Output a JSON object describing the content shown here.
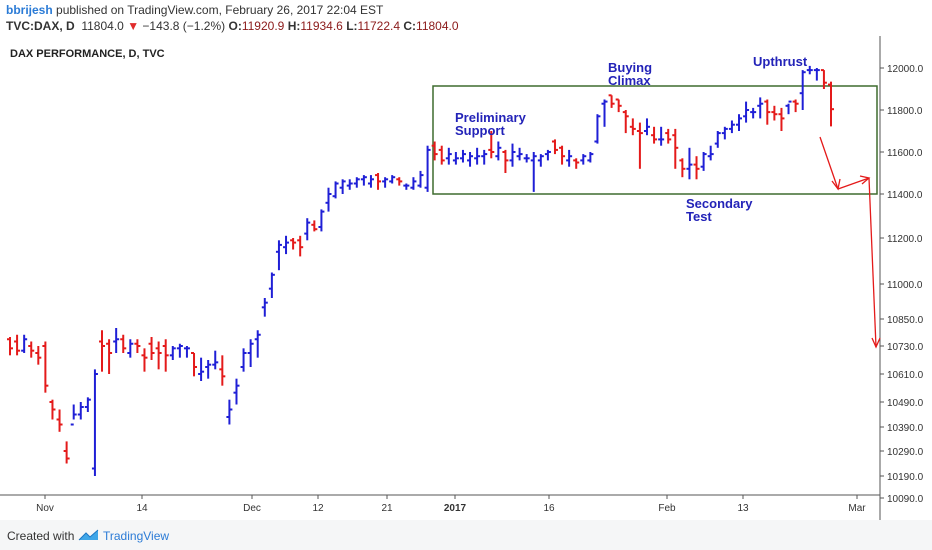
{
  "header": {
    "author": "bbrijesh",
    "published": "published on TradingView.com, February 26, 2017 22:04 EST",
    "symbol": "TVC:DAX, D",
    "last": "11804.0",
    "change": "−143.8 (−1.2%)",
    "open_label": "O:",
    "open": "11920.9",
    "high_label": "H:",
    "high": "11934.6",
    "low_label": "L:",
    "low": "11722.4",
    "close_label": "C:",
    "close": "11804.0"
  },
  "footer": {
    "created_with": "Created with",
    "brand": "TradingView"
  },
  "colors": {
    "up": "#1f1fd6",
    "down": "#e41a1a",
    "box": "#3e6b2f",
    "annotation": "#2323b8",
    "arrow": "#e41a1a"
  },
  "chart_data": {
    "type": "ohlc",
    "title": "DAX PERFORMANCE, D, TVC",
    "y_ticks": [
      12000.0,
      11800.0,
      11600.0,
      11400.0,
      11200.0,
      11000.0,
      10850.0,
      10730.0,
      10610.0,
      10490.0,
      10390.0,
      10290.0,
      10190.0,
      10090.0
    ],
    "y_tick_labels": [
      "12000.0",
      "11800.0",
      "11600.0",
      "11400.0",
      "11200.0",
      "11000.0",
      "10850.0",
      "10730.0",
      "10610.0",
      "10490.0",
      "10390.0",
      "10290.0",
      "10190.0",
      "10090.0"
    ],
    "x_tick_labels": [
      "Nov",
      "14",
      "Dec",
      "12",
      "21",
      "2017",
      "16",
      "Feb",
      "13",
      "Mar"
    ],
    "bars": [
      {
        "o": 10760,
        "h": 10770,
        "l": 10690,
        "c": 10720
      },
      {
        "o": 10750,
        "h": 10780,
        "l": 10690,
        "c": 10710
      },
      {
        "o": 10710,
        "h": 10780,
        "l": 10700,
        "c": 10760
      },
      {
        "o": 10730,
        "h": 10750,
        "l": 10680,
        "c": 10710
      },
      {
        "o": 10700,
        "h": 10730,
        "l": 10650,
        "c": 10680
      },
      {
        "o": 10730,
        "h": 10750,
        "l": 10530,
        "c": 10560
      },
      {
        "o": 10490,
        "h": 10500,
        "l": 10420,
        "c": 10460
      },
      {
        "o": 10420,
        "h": 10460,
        "l": 10370,
        "c": 10400
      },
      {
        "o": 10290,
        "h": 10330,
        "l": 10240,
        "c": 10260
      },
      {
        "o": 10400,
        "h": 10480,
        "l": 10420,
        "c": 10440
      },
      {
        "o": 10440,
        "h": 10490,
        "l": 10420,
        "c": 10470
      },
      {
        "o": 10470,
        "h": 10510,
        "l": 10450,
        "c": 10500
      },
      {
        "o": 10220,
        "h": 10630,
        "l": 10190,
        "c": 10610
      },
      {
        "o": 10750,
        "h": 10800,
        "l": 10620,
        "c": 10730
      },
      {
        "o": 10740,
        "h": 10760,
        "l": 10610,
        "c": 10700
      },
      {
        "o": 10750,
        "h": 10810,
        "l": 10700,
        "c": 10760
      },
      {
        "o": 10760,
        "h": 10780,
        "l": 10700,
        "c": 10720
      },
      {
        "o": 10700,
        "h": 10760,
        "l": 10680,
        "c": 10740
      },
      {
        "o": 10740,
        "h": 10760,
        "l": 10700,
        "c": 10730
      },
      {
        "o": 10690,
        "h": 10720,
        "l": 10620,
        "c": 10680
      },
      {
        "o": 10740,
        "h": 10770,
        "l": 10670,
        "c": 10700
      },
      {
        "o": 10720,
        "h": 10750,
        "l": 10630,
        "c": 10700
      },
      {
        "o": 10730,
        "h": 10760,
        "l": 10620,
        "c": 10690
      },
      {
        "o": 10690,
        "h": 10730,
        "l": 10670,
        "c": 10720
      },
      {
        "o": 10720,
        "h": 10740,
        "l": 10680,
        "c": 10730
      },
      {
        "o": 10720,
        "h": 10730,
        "l": 10680,
        "c": 10720
      },
      {
        "o": 10700,
        "h": 10700,
        "l": 10600,
        "c": 10640
      },
      {
        "o": 10610,
        "h": 10680,
        "l": 10580,
        "c": 10620
      },
      {
        "o": 10640,
        "h": 10670,
        "l": 10590,
        "c": 10650
      },
      {
        "o": 10650,
        "h": 10710,
        "l": 10630,
        "c": 10660
      },
      {
        "o": 10630,
        "h": 10690,
        "l": 10560,
        "c": 10600
      },
      {
        "o": 10430,
        "h": 10500,
        "l": 10400,
        "c": 10460
      },
      {
        "o": 10530,
        "h": 10590,
        "l": 10480,
        "c": 10560
      },
      {
        "o": 10640,
        "h": 10720,
        "l": 10620,
        "c": 10700
      },
      {
        "o": 10700,
        "h": 10760,
        "l": 10640,
        "c": 10740
      },
      {
        "o": 10760,
        "h": 10800,
        "l": 10680,
        "c": 10780
      },
      {
        "o": 10900,
        "h": 10940,
        "l": 10860,
        "c": 10920
      },
      {
        "o": 10980,
        "h": 11050,
        "l": 10940,
        "c": 11040
      },
      {
        "o": 11140,
        "h": 11190,
        "l": 11060,
        "c": 11170
      },
      {
        "o": 11160,
        "h": 11210,
        "l": 11130,
        "c": 11180
      },
      {
        "o": 11190,
        "h": 11200,
        "l": 11150,
        "c": 11180
      },
      {
        "o": 11190,
        "h": 11210,
        "l": 11120,
        "c": 11160
      },
      {
        "o": 11220,
        "h": 11290,
        "l": 11190,
        "c": 11270
      },
      {
        "o": 11260,
        "h": 11280,
        "l": 11230,
        "c": 11240
      },
      {
        "o": 11250,
        "h": 11330,
        "l": 11230,
        "c": 11320
      },
      {
        "o": 11360,
        "h": 11430,
        "l": 11320,
        "c": 11400
      },
      {
        "o": 11390,
        "h": 11460,
        "l": 11380,
        "c": 11450
      },
      {
        "o": 11430,
        "h": 11470,
        "l": 11400,
        "c": 11460
      },
      {
        "o": 11440,
        "h": 11470,
        "l": 11420,
        "c": 11450
      },
      {
        "o": 11450,
        "h": 11480,
        "l": 11430,
        "c": 11470
      },
      {
        "o": 11470,
        "h": 11490,
        "l": 11440,
        "c": 11480
      },
      {
        "o": 11450,
        "h": 11490,
        "l": 11430,
        "c": 11470
      },
      {
        "o": 11490,
        "h": 11500,
        "l": 11420,
        "c": 11460
      },
      {
        "o": 11460,
        "h": 11480,
        "l": 11430,
        "c": 11470
      },
      {
        "o": 11460,
        "h": 11490,
        "l": 11450,
        "c": 11480
      },
      {
        "o": 11470,
        "h": 11480,
        "l": 11440,
        "c": 11460
      },
      {
        "o": 11440,
        "h": 11450,
        "l": 11420,
        "c": 11440
      },
      {
        "o": 11430,
        "h": 11480,
        "l": 11420,
        "c": 11460
      },
      {
        "o": 11440,
        "h": 11510,
        "l": 11430,
        "c": 11490
      },
      {
        "o": 11430,
        "h": 11630,
        "l": 11410,
        "c": 11610
      },
      {
        "o": 11630,
        "h": 11650,
        "l": 11560,
        "c": 11590
      },
      {
        "o": 11610,
        "h": 11630,
        "l": 11540,
        "c": 11560
      },
      {
        "o": 11570,
        "h": 11620,
        "l": 11540,
        "c": 11590
      },
      {
        "o": 11560,
        "h": 11600,
        "l": 11540,
        "c": 11570
      },
      {
        "o": 11570,
        "h": 11610,
        "l": 11550,
        "c": 11590
      },
      {
        "o": 11560,
        "h": 11600,
        "l": 11530,
        "c": 11580
      },
      {
        "o": 11570,
        "h": 11620,
        "l": 11540,
        "c": 11580
      },
      {
        "o": 11580,
        "h": 11610,
        "l": 11540,
        "c": 11590
      },
      {
        "o": 11610,
        "h": 11700,
        "l": 11570,
        "c": 11600
      },
      {
        "o": 11580,
        "h": 11650,
        "l": 11560,
        "c": 11620
      },
      {
        "o": 11600,
        "h": 11610,
        "l": 11500,
        "c": 11560
      },
      {
        "o": 11560,
        "h": 11640,
        "l": 11530,
        "c": 11600
      },
      {
        "o": 11580,
        "h": 11620,
        "l": 11560,
        "c": 11590
      },
      {
        "o": 11570,
        "h": 11590,
        "l": 11550,
        "c": 11570
      },
      {
        "o": 11560,
        "h": 11600,
        "l": 11410,
        "c": 11580
      },
      {
        "o": 11560,
        "h": 11590,
        "l": 11530,
        "c": 11580
      },
      {
        "o": 11590,
        "h": 11610,
        "l": 11560,
        "c": 11600
      },
      {
        "o": 11650,
        "h": 11660,
        "l": 11590,
        "c": 11610
      },
      {
        "o": 11620,
        "h": 11630,
        "l": 11540,
        "c": 11580
      },
      {
        "o": 11560,
        "h": 11610,
        "l": 11530,
        "c": 11580
      },
      {
        "o": 11560,
        "h": 11570,
        "l": 11520,
        "c": 11550
      },
      {
        "o": 11560,
        "h": 11590,
        "l": 11540,
        "c": 11580
      },
      {
        "o": 11560,
        "h": 11600,
        "l": 11550,
        "c": 11590
      },
      {
        "o": 11650,
        "h": 11780,
        "l": 11640,
        "c": 11770
      },
      {
        "o": 11830,
        "h": 11850,
        "l": 11720,
        "c": 11840
      },
      {
        "o": 11870,
        "h": 11870,
        "l": 11810,
        "c": 11830
      },
      {
        "o": 11850,
        "h": 11850,
        "l": 11790,
        "c": 11820
      },
      {
        "o": 11790,
        "h": 11800,
        "l": 11690,
        "c": 11770
      },
      {
        "o": 11720,
        "h": 11760,
        "l": 11680,
        "c": 11710
      },
      {
        "o": 11700,
        "h": 11740,
        "l": 11520,
        "c": 11690
      },
      {
        "o": 11700,
        "h": 11760,
        "l": 11680,
        "c": 11720
      },
      {
        "o": 11680,
        "h": 11720,
        "l": 11640,
        "c": 11660
      },
      {
        "o": 11660,
        "h": 11720,
        "l": 11630,
        "c": 11660
      },
      {
        "o": 11690,
        "h": 11710,
        "l": 11640,
        "c": 11660
      },
      {
        "o": 11680,
        "h": 11710,
        "l": 11520,
        "c": 11620
      },
      {
        "o": 11560,
        "h": 11570,
        "l": 11480,
        "c": 11520
      },
      {
        "o": 11520,
        "h": 11620,
        "l": 11470,
        "c": 11540
      },
      {
        "o": 11540,
        "h": 11580,
        "l": 11470,
        "c": 11520
      },
      {
        "o": 11530,
        "h": 11600,
        "l": 11510,
        "c": 11590
      },
      {
        "o": 11580,
        "h": 11630,
        "l": 11560,
        "c": 11590
      },
      {
        "o": 11640,
        "h": 11700,
        "l": 11620,
        "c": 11690
      },
      {
        "o": 11690,
        "h": 11720,
        "l": 11660,
        "c": 11710
      },
      {
        "o": 11710,
        "h": 11750,
        "l": 11690,
        "c": 11730
      },
      {
        "o": 11730,
        "h": 11780,
        "l": 11700,
        "c": 11760
      },
      {
        "o": 11770,
        "h": 11840,
        "l": 11740,
        "c": 11800
      },
      {
        "o": 11790,
        "h": 11810,
        "l": 11760,
        "c": 11790
      },
      {
        "o": 11820,
        "h": 11860,
        "l": 11760,
        "c": 11830
      },
      {
        "o": 11840,
        "h": 11850,
        "l": 11730,
        "c": 11790
      },
      {
        "o": 11790,
        "h": 11820,
        "l": 11750,
        "c": 11780
      },
      {
        "o": 11780,
        "h": 11810,
        "l": 11700,
        "c": 11760
      },
      {
        "o": 11820,
        "h": 11830,
        "l": 11780,
        "c": 11840
      },
      {
        "o": 11840,
        "h": 11850,
        "l": 11790,
        "c": 11830
      },
      {
        "o": 11880,
        "h": 11990,
        "l": 11800,
        "c": 11980
      },
      {
        "o": 11990,
        "h": 12010,
        "l": 11970,
        "c": 11990
      },
      {
        "o": 11990,
        "h": 12000,
        "l": 11940,
        "c": 11990
      },
      {
        "o": 11990,
        "h": 11990,
        "l": 11900,
        "c": 11930
      },
      {
        "o": 11921,
        "h": 11935,
        "l": 11722,
        "c": 11804
      }
    ],
    "annotations": [
      {
        "text_lines": [
          "Preliminary",
          "Support"
        ]
      },
      {
        "text_lines": [
          "Buying",
          "Climax"
        ]
      },
      {
        "text_lines": [
          "Upthrust"
        ]
      },
      {
        "text_lines": [
          "Secondary",
          "Test"
        ]
      }
    ]
  }
}
